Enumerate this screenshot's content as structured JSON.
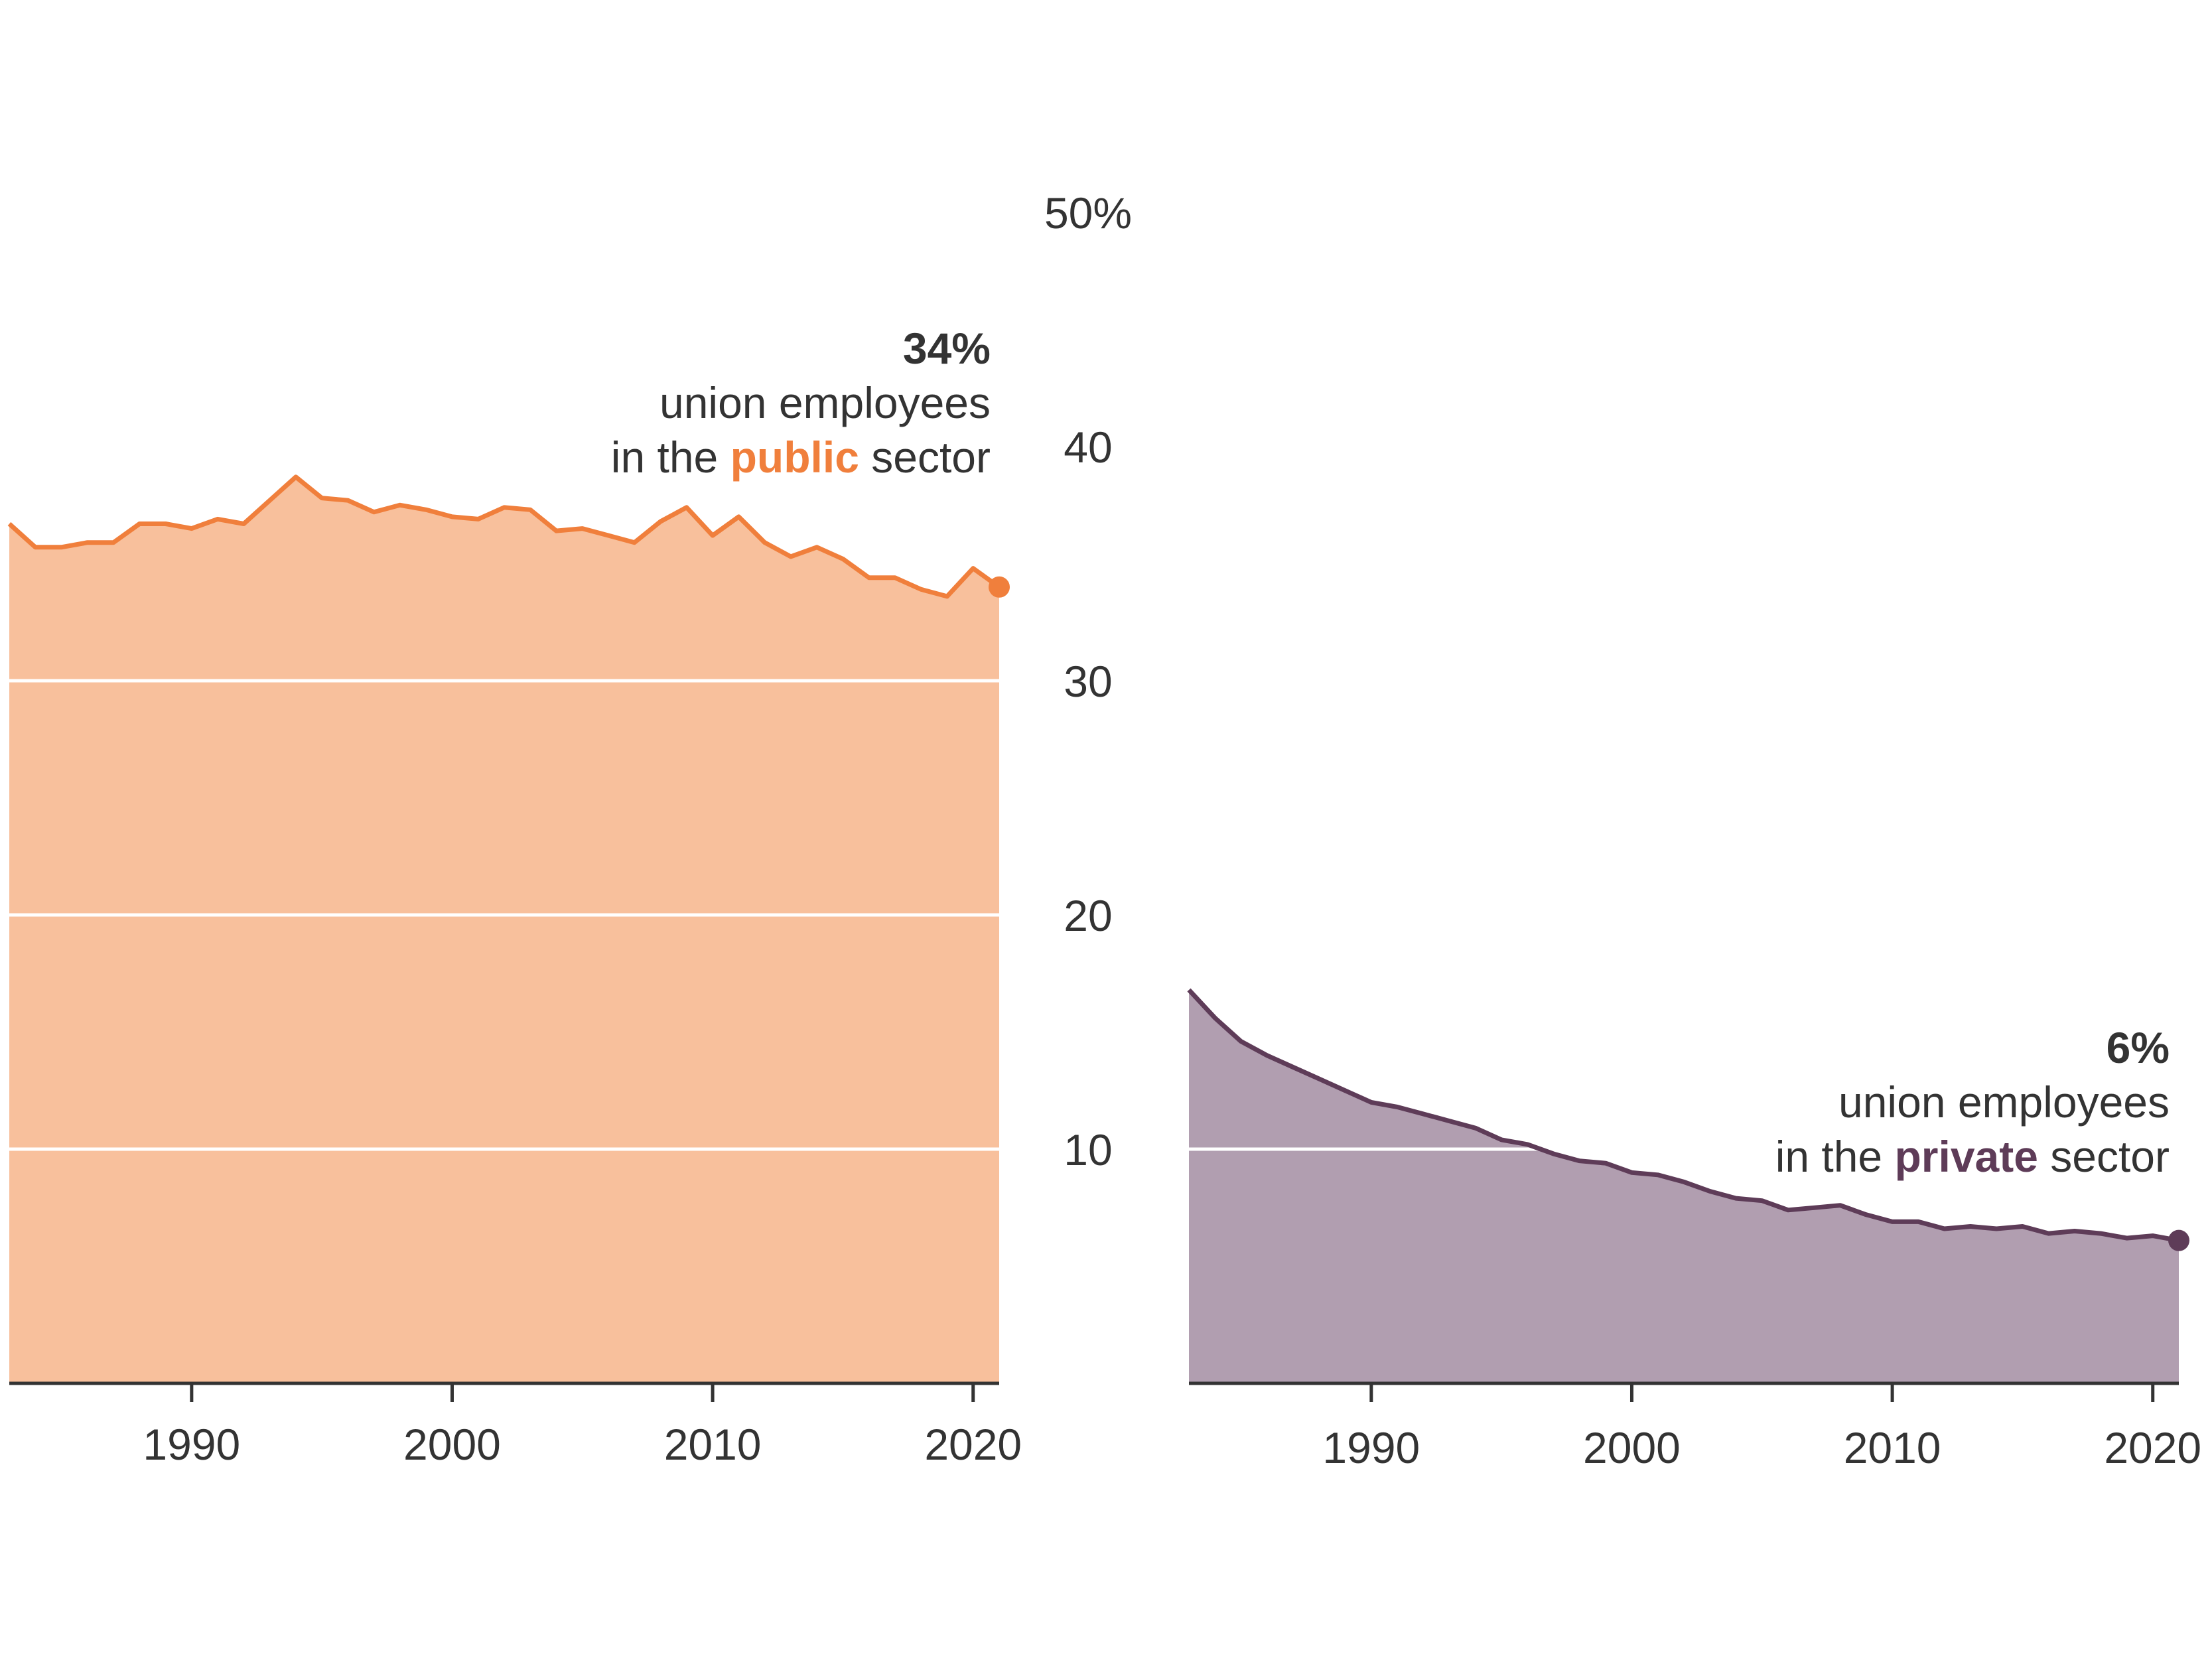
{
  "colors": {
    "public_line": "#F07F3C",
    "public_fill": "#F8C09C",
    "private_line": "#5E3C58",
    "private_fill": "#B19EB0",
    "gridline": "#ffffff",
    "baseline": "#333333",
    "text": "#333333"
  },
  "chart_data": [
    {
      "type": "area",
      "panel": "public",
      "x": [
        1983,
        1984,
        1985,
        1986,
        1987,
        1988,
        1989,
        1990,
        1991,
        1992,
        1993,
        1994,
        1995,
        1996,
        1997,
        1998,
        1999,
        2000,
        2001,
        2002,
        2003,
        2004,
        2005,
        2006,
        2007,
        2008,
        2009,
        2010,
        2011,
        2012,
        2013,
        2014,
        2015,
        2016,
        2017,
        2018,
        2019,
        2020,
        2021
      ],
      "series": [
        {
          "values": [
            36.7,
            35.7,
            35.7,
            35.9,
            35.9,
            36.7,
            36.7,
            36.5,
            36.9,
            36.7,
            37.7,
            38.7,
            37.8,
            37.7,
            37.2,
            37.5,
            37.3,
            37.0,
            36.9,
            37.4,
            37.3,
            36.4,
            36.5,
            36.2,
            35.9,
            36.8,
            37.4,
            36.2,
            37.0,
            35.9,
            35.3,
            35.7,
            35.2,
            34.4,
            34.4,
            33.9,
            33.6,
            34.8,
            34.0
          ]
        }
      ],
      "xlim": [
        1983,
        2021
      ],
      "ylim": [
        0,
        50
      ],
      "xticks": [
        "1990",
        "2000",
        "2010",
        "2020"
      ],
      "xtick_values": [
        1990,
        2000,
        2010,
        2020
      ],
      "gridlines": [
        10,
        20,
        30
      ],
      "annotation": {
        "value": "34%",
        "line1": "union employees",
        "line2_before": "in the ",
        "line2_highlight": "public",
        "line2_after": " sector"
      }
    },
    {
      "type": "area",
      "panel": "private",
      "x": [
        1983,
        1984,
        1985,
        1986,
        1987,
        1988,
        1989,
        1990,
        1991,
        1992,
        1993,
        1994,
        1995,
        1996,
        1997,
        1998,
        1999,
        2000,
        2001,
        2002,
        2003,
        2004,
        2005,
        2006,
        2007,
        2008,
        2009,
        2010,
        2011,
        2012,
        2013,
        2014,
        2015,
        2016,
        2017,
        2018,
        2019,
        2020,
        2021
      ],
      "series": [
        {
          "values": [
            16.8,
            15.6,
            14.6,
            14.0,
            13.5,
            13.0,
            12.5,
            12.0,
            11.8,
            11.5,
            11.2,
            10.9,
            10.4,
            10.2,
            9.8,
            9.5,
            9.4,
            9.0,
            8.9,
            8.6,
            8.2,
            7.9,
            7.8,
            7.4,
            7.5,
            7.6,
            7.2,
            6.9,
            6.9,
            6.6,
            6.7,
            6.6,
            6.7,
            6.4,
            6.5,
            6.4,
            6.2,
            6.3,
            6.1
          ]
        }
      ],
      "xlim": [
        1983,
        2021
      ],
      "ylim": [
        0,
        50
      ],
      "xticks": [
        "1990",
        "2000",
        "2010",
        "2020"
      ],
      "xtick_values": [
        1990,
        2000,
        2010,
        2020
      ],
      "gridlines": [
        10
      ],
      "annotation": {
        "value": "6%",
        "line1": "union employees",
        "line2_before": "in the ",
        "line2_highlight": "private",
        "line2_after": " sector"
      }
    }
  ],
  "y_axis": {
    "ticks": [
      "50%",
      "40",
      "30",
      "20",
      "10"
    ],
    "tick_values": [
      50,
      40,
      30,
      20,
      10
    ]
  }
}
